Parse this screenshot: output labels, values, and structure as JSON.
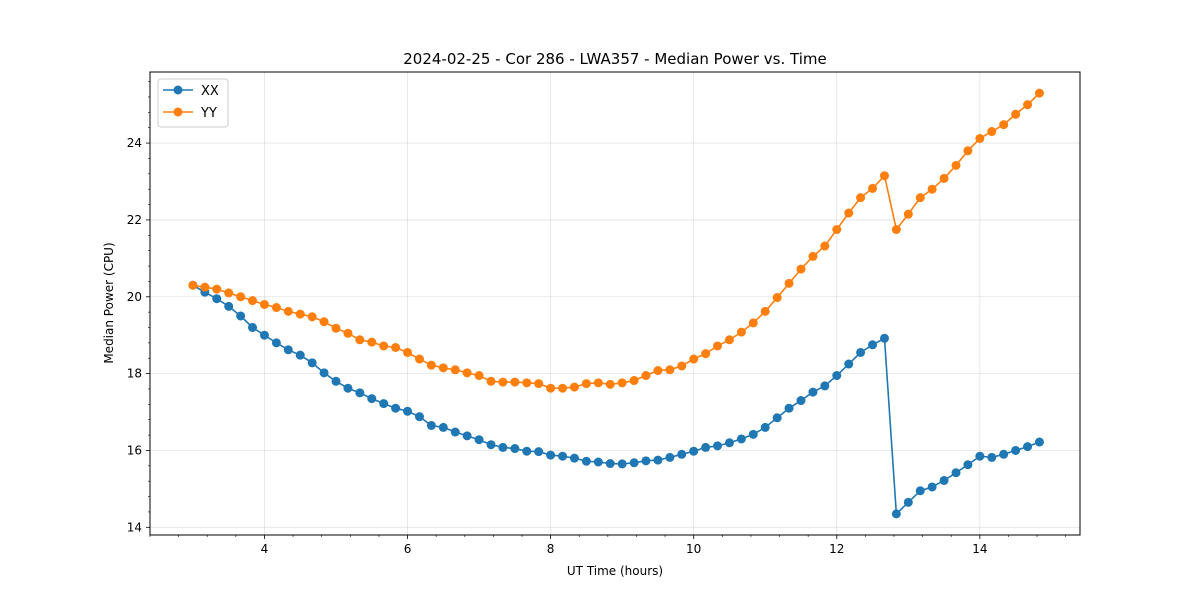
{
  "chart_data": {
    "type": "line",
    "title": "2024-02-25 - Cor 286 - LWA357 - Median Power vs. Time",
    "xlabel": "UT Time (hours)",
    "ylabel": "Median Power (CPU)",
    "xlim": [
      2.4,
      15.4
    ],
    "ylim": [
      13.8,
      25.85
    ],
    "xticks": [
      4,
      6,
      8,
      10,
      12,
      14
    ],
    "yticks": [
      14,
      16,
      18,
      20,
      22,
      24
    ],
    "grid": true,
    "legend_position": "top-left",
    "x": [
      3.0,
      3.167,
      3.333,
      3.5,
      3.667,
      3.833,
      4.0,
      4.167,
      4.333,
      4.5,
      4.667,
      4.833,
      5.0,
      5.167,
      5.333,
      5.5,
      5.667,
      5.833,
      6.0,
      6.167,
      6.333,
      6.5,
      6.667,
      6.833,
      7.0,
      7.167,
      7.333,
      7.5,
      7.667,
      7.833,
      8.0,
      8.167,
      8.333,
      8.5,
      8.667,
      8.833,
      9.0,
      9.167,
      9.333,
      9.5,
      9.667,
      9.833,
      10.0,
      10.167,
      10.333,
      10.5,
      10.667,
      10.833,
      11.0,
      11.167,
      11.333,
      11.5,
      11.667,
      11.833,
      12.0,
      12.167,
      12.333,
      12.5,
      12.667,
      12.833,
      13.0,
      13.167,
      13.333,
      13.5,
      13.667,
      13.833,
      14.0,
      14.167,
      14.333,
      14.5,
      14.667,
      14.833
    ],
    "series": [
      {
        "name": "XX",
        "color": "#1f77b4",
        "values": [
          20.3,
          20.12,
          19.95,
          19.75,
          19.5,
          19.2,
          19.0,
          18.8,
          18.62,
          18.48,
          18.28,
          18.02,
          17.8,
          17.62,
          17.5,
          17.35,
          17.22,
          17.1,
          17.02,
          16.88,
          16.65,
          16.6,
          16.48,
          16.38,
          16.28,
          16.15,
          16.08,
          16.05,
          15.98,
          15.97,
          15.88,
          15.85,
          15.8,
          15.72,
          15.7,
          15.66,
          15.65,
          15.68,
          15.73,
          15.75,
          15.82,
          15.9,
          15.98,
          16.08,
          16.12,
          16.2,
          16.3,
          16.42,
          16.6,
          16.85,
          17.1,
          17.3,
          17.52,
          17.68,
          17.95,
          18.25,
          18.55,
          18.75,
          18.92,
          14.35,
          14.65,
          14.95,
          15.05,
          15.22,
          15.42,
          15.63,
          15.85,
          15.82,
          15.9,
          16.0,
          16.1,
          16.22
        ]
      },
      {
        "name": "YY",
        "color": "#ff7f0e",
        "values": [
          20.3,
          20.25,
          20.2,
          20.1,
          20.0,
          19.9,
          19.8,
          19.72,
          19.62,
          19.55,
          19.48,
          19.35,
          19.18,
          19.05,
          18.88,
          18.82,
          18.72,
          18.68,
          18.55,
          18.38,
          18.22,
          18.15,
          18.1,
          18.02,
          17.95,
          17.8,
          17.78,
          17.78,
          17.76,
          17.74,
          17.62,
          17.62,
          17.65,
          17.74,
          17.76,
          17.72,
          17.76,
          17.82,
          17.95,
          18.08,
          18.1,
          18.2,
          18.38,
          18.52,
          18.72,
          18.88,
          19.08,
          19.32,
          19.62,
          19.98,
          20.35,
          20.72,
          21.05,
          21.32,
          21.75,
          22.18,
          22.58,
          22.82,
          23.15,
          21.75,
          22.15,
          22.58,
          22.8,
          23.08,
          23.42,
          23.8,
          24.12,
          24.3,
          24.48,
          24.75,
          25.0,
          25.3
        ]
      }
    ]
  }
}
